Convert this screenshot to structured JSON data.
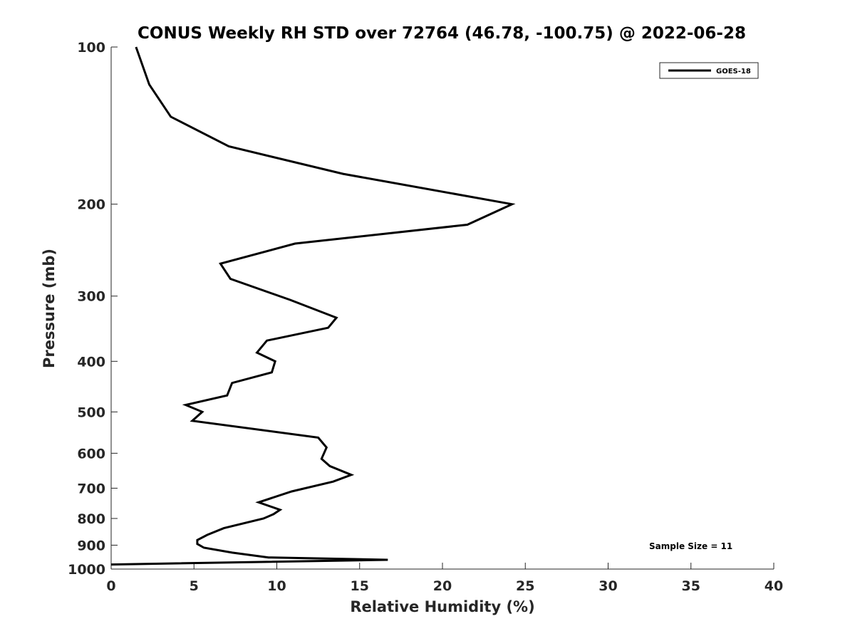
{
  "chart_data": {
    "type": "line",
    "title": "CONUS Weekly RH STD over 72764 (46.78, -100.75) @ 2022-06-28",
    "xlabel": "Relative Humidity (%)",
    "ylabel": "Pressure (mb)",
    "xlim": [
      0,
      40
    ],
    "ylim": [
      100,
      1000
    ],
    "yscale": "log",
    "yaxis_reversed": true,
    "grid": false,
    "x_ticks": [
      0,
      5,
      10,
      15,
      20,
      25,
      30,
      35,
      40
    ],
    "x_tick_labels": [
      "0",
      "5",
      "10",
      "15",
      "20",
      "25",
      "30",
      "35",
      "40"
    ],
    "y_ticks": [
      100,
      200,
      300,
      400,
      500,
      600,
      700,
      800,
      900,
      1000
    ],
    "y_tick_labels": [
      "100",
      "200",
      "300",
      "400",
      "500",
      "600",
      "700",
      "800",
      "900",
      "1000"
    ],
    "legend": {
      "position": "top-right",
      "entries": [
        "GOES-18"
      ]
    },
    "annotation": "Sample Size = 11",
    "series": [
      {
        "name": "GOES-18",
        "color": "#000000",
        "x": [
          1.5,
          2.3,
          3.6,
          7.1,
          14.0,
          24.2,
          21.5,
          11.1,
          6.6,
          7.2,
          10.8,
          13.6,
          13.1,
          9.4,
          8.8,
          9.9,
          9.7,
          7.3,
          7.0,
          4.5,
          5.5,
          4.9,
          12.5,
          13.0,
          12.7,
          13.2,
          14.5,
          13.4,
          10.9,
          8.9,
          10.2,
          9.8,
          9.2,
          6.8,
          5.8,
          5.2,
          5.2,
          5.6,
          7.3,
          9.5,
          16.7,
          0.0
        ],
        "y": [
          100,
          118,
          136,
          155,
          175,
          200,
          219,
          238,
          260,
          278,
          305,
          330,
          345,
          365,
          385,
          400,
          420,
          440,
          465,
          485,
          500,
          520,
          560,
          585,
          615,
          635,
          660,
          680,
          710,
          745,
          770,
          785,
          800,
          835,
          860,
          880,
          895,
          910,
          930,
          950,
          960,
          980
        ]
      }
    ]
  }
}
